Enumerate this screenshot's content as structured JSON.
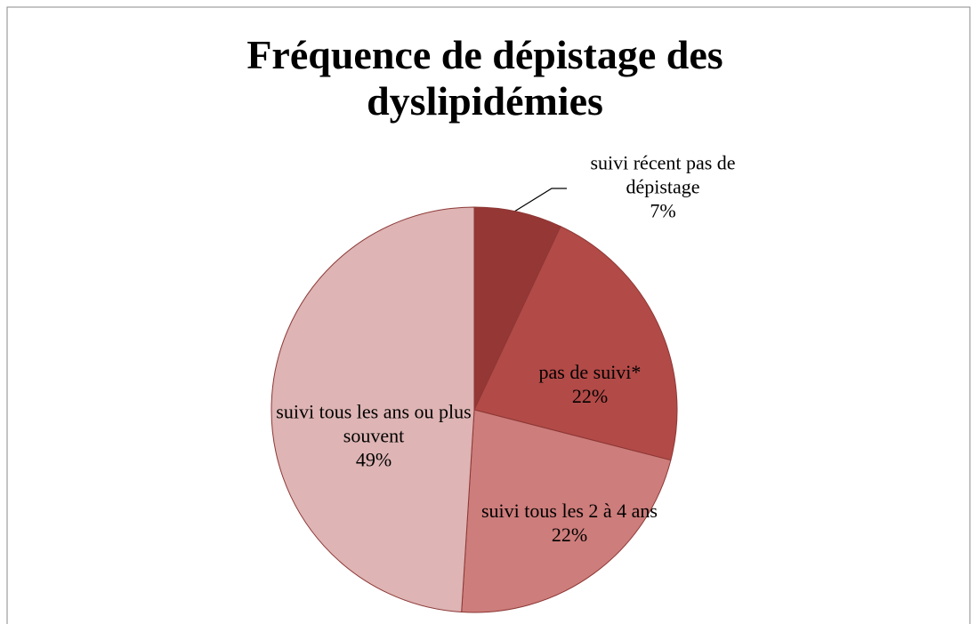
{
  "chart_data": {
    "type": "pie",
    "title": "Fréquence de dépistage des dyslipidémies",
    "categories": [
      "suivi récent pas de dépistage",
      "pas de suivi*",
      "suivi tous les 2 à 4 ans",
      "suivi tous les ans ou plus souvent"
    ],
    "values": [
      7,
      22,
      22,
      49
    ],
    "value_labels": [
      "7%",
      "22%",
      "22%",
      "49%"
    ],
    "colors": [
      "#953735",
      "#b24a47",
      "#cd7d7b",
      "#deb4b4"
    ]
  }
}
